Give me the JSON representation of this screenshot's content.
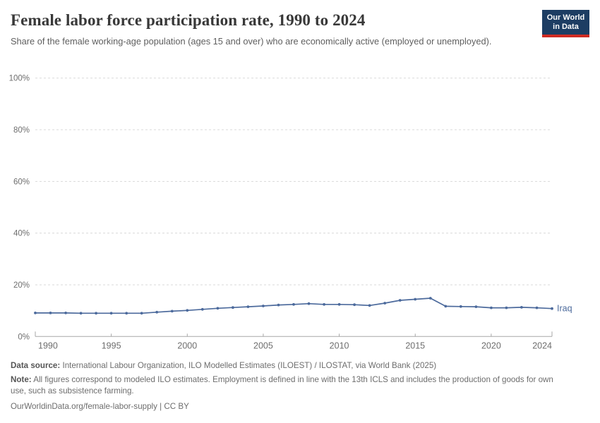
{
  "header": {
    "logo": {
      "line1": "Our World",
      "line2": "in Data"
    }
  },
  "chart_data": {
    "type": "line",
    "title": "Female labor force participation rate, 1990 to 2024",
    "subtitle": "Share of the female working-age population (ages 15 and over) who are economically active (employed or unemployed).",
    "x": [
      1990,
      1991,
      1992,
      1993,
      1994,
      1995,
      1996,
      1997,
      1998,
      1999,
      2000,
      2001,
      2002,
      2003,
      2004,
      2005,
      2006,
      2007,
      2008,
      2009,
      2010,
      2011,
      2012,
      2013,
      2014,
      2015,
      2016,
      2017,
      2018,
      2019,
      2020,
      2021,
      2022,
      2023,
      2024
    ],
    "series": [
      {
        "name": "Iraq",
        "color": "#4C6A9C",
        "values": [
          9.1,
          9.1,
          9.1,
          9.0,
          9.0,
          9.0,
          9.0,
          9.0,
          9.4,
          9.8,
          10.1,
          10.5,
          10.9,
          11.2,
          11.5,
          11.8,
          12.2,
          12.4,
          12.7,
          12.4,
          12.4,
          12.3,
          12.0,
          12.9,
          14.0,
          14.4,
          14.8,
          11.7,
          11.6,
          11.5,
          11.1,
          11.1,
          11.3,
          11.1,
          10.8
        ]
      }
    ],
    "xlabel": "",
    "ylabel": "",
    "xlim": [
      1990,
      2024
    ],
    "ylim": [
      0,
      100
    ],
    "yticks": [
      0,
      20,
      40,
      60,
      80,
      100
    ],
    "ytick_suffix": "%",
    "xticks": [
      1990,
      1995,
      2000,
      2005,
      2010,
      2015,
      2020,
      2024
    ],
    "grid": "horizontal-dashed",
    "legend_position": "end-of-line-label",
    "markers": true
  },
  "footer": {
    "datasource_label": "Data source:",
    "datasource_text": "International Labour Organization, ILO Modelled Estimates (ILOEST) / ILOSTAT, via World Bank (2025)",
    "note_label": "Note:",
    "note_text": "All figures correspond to modeled ILO estimates. Employment is defined in line with the 13th ICLS and includes the production of goods for own use, such as subsistence farming.",
    "link": "OurWorldinData.org/female-labor-supply",
    "separator": "|",
    "license": "CC BY"
  },
  "colors": {
    "series_blue": "#4C6A9C",
    "logo_background": "#1d3d63",
    "logo_underline": "#cf2b22",
    "gridline": "#dadada",
    "axis": "#a7a7a7",
    "tick_text": "#6e6e6e"
  }
}
